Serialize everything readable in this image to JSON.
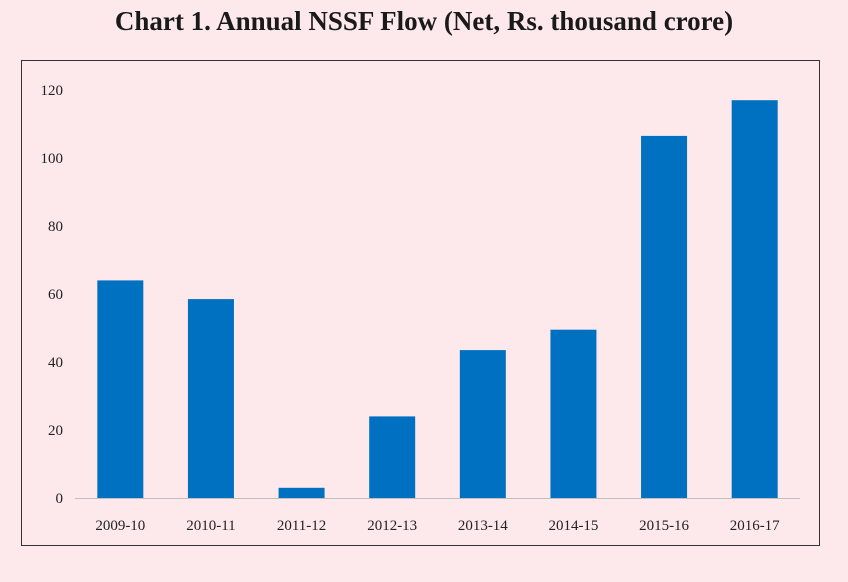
{
  "chart_data": {
    "type": "bar",
    "title": "Chart 1. Annual NSSF Flow (Net, Rs. thousand crore)",
    "xlabel": "",
    "ylabel": "",
    "categories": [
      "2009-10",
      "2010-11",
      "2011-12",
      "2012-13",
      "2013-14",
      "2014-15",
      "2015-16",
      "2016-17"
    ],
    "values": [
      64,
      58.5,
      3,
      24,
      43.5,
      49.5,
      106.5,
      117
    ],
    "ylim": [
      0,
      120
    ],
    "yticks": [
      0,
      20,
      40,
      60,
      80,
      100,
      120
    ],
    "grid": false,
    "bar_color": "#0070c0",
    "background_color": "#fde9ec"
  }
}
